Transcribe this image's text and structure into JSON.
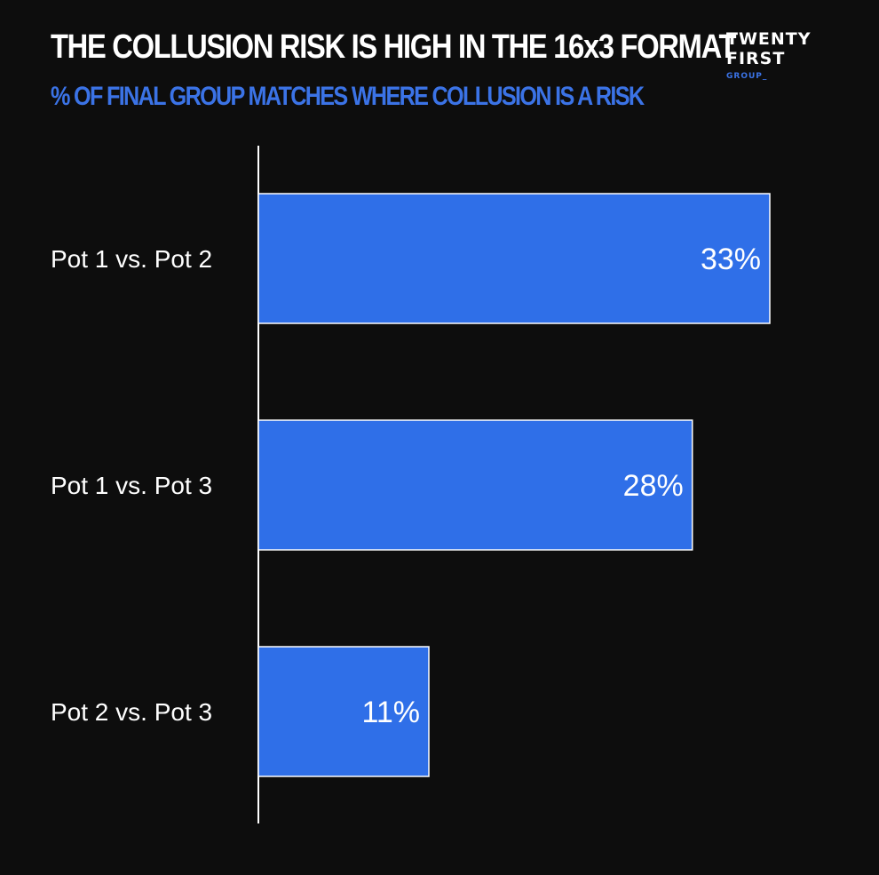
{
  "header": {
    "title": "THE COLLUSION RISK IS HIGH IN THE 16x3 FORMAT",
    "subtitle": "% OF FINAL GROUP MATCHES WHERE COLLUSION IS A RISK"
  },
  "logo": {
    "line1": "TWENTY",
    "line2": "FIRST",
    "line3": "GROUP_"
  },
  "colors": {
    "background": "#0d0d0d",
    "bar": "#2f6fe8",
    "bar_border": "#ffffff",
    "accent": "#3b73e6",
    "text": "#ffffff"
  },
  "chart_data": {
    "type": "bar",
    "orientation": "horizontal",
    "categories": [
      "Pot 1 vs. Pot 2",
      "Pot 1 vs. Pot 3",
      "Pot 2 vs. Pot 3"
    ],
    "values": [
      33,
      28,
      11
    ],
    "value_labels": [
      "33%",
      "28%",
      "11%"
    ],
    "title": "THE COLLUSION RISK IS HIGH IN THE 16x3 FORMAT",
    "subtitle": "% OF FINAL GROUP MATCHES WHERE COLLUSION IS A RISK",
    "xlabel": "",
    "ylabel": "",
    "xlim": [
      0,
      40
    ],
    "grid": false,
    "legend": "none"
  }
}
